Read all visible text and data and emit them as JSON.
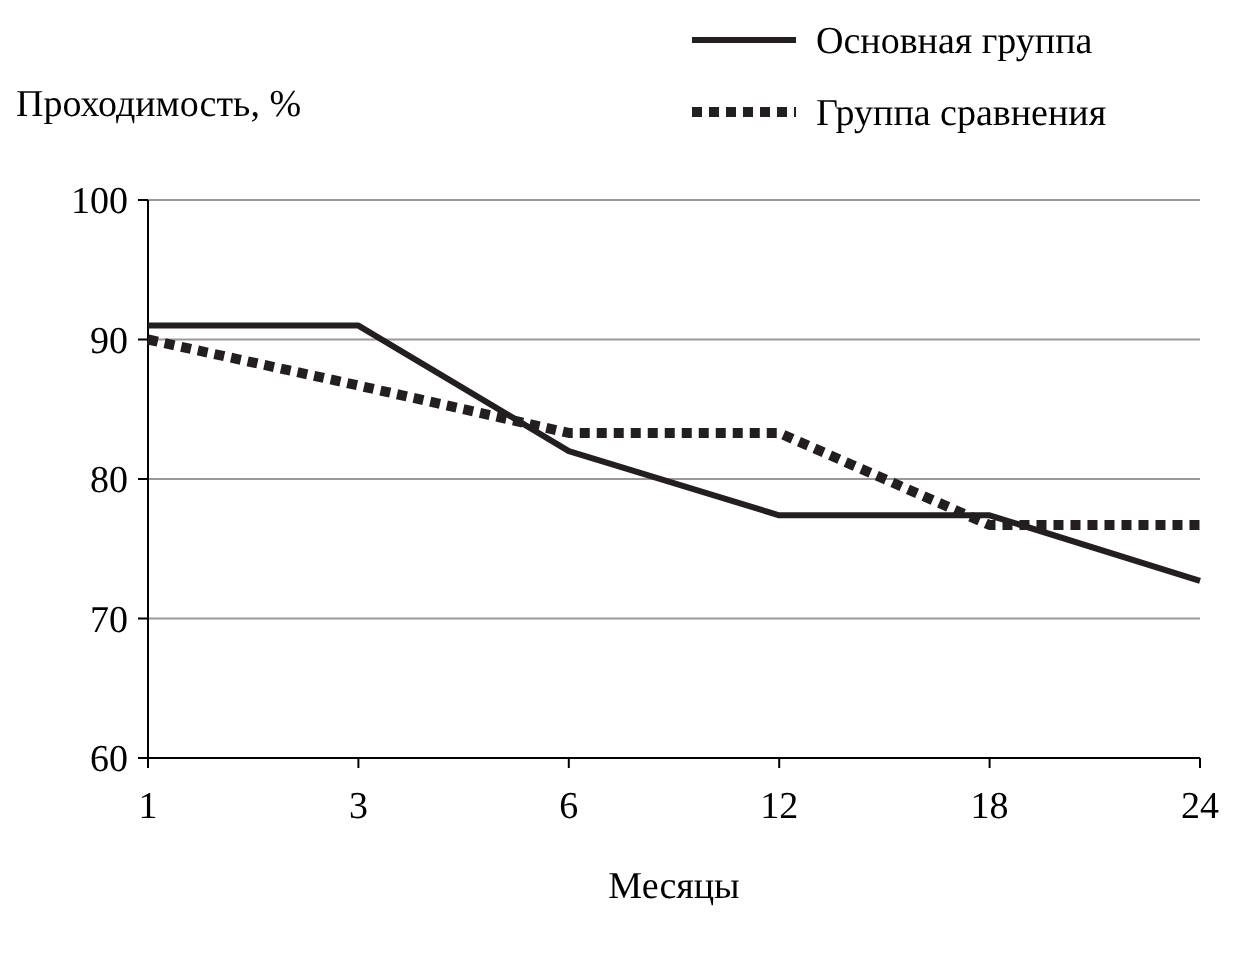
{
  "chart_data": {
    "type": "line",
    "ylabel": "Проходимость, %",
    "xlabel": "Месяцы",
    "categories": [
      "1",
      "3",
      "6",
      "12",
      "18",
      "24"
    ],
    "series": [
      {
        "name": "Основная группа",
        "color": "#231f20",
        "line_style": "solid",
        "values": [
          91,
          91,
          82,
          77.4,
          77.4,
          72.7
        ]
      },
      {
        "name": "Группа сравнения",
        "color": "#231f20",
        "line_style": "dotted",
        "values": [
          90,
          86.7,
          83.3,
          83.3,
          76.7,
          76.7
        ]
      }
    ],
    "ylim": [
      60,
      100
    ],
    "yticks": [
      60,
      70,
      80,
      90,
      100
    ],
    "grid": "y",
    "legend": "top right",
    "marker": "none"
  }
}
